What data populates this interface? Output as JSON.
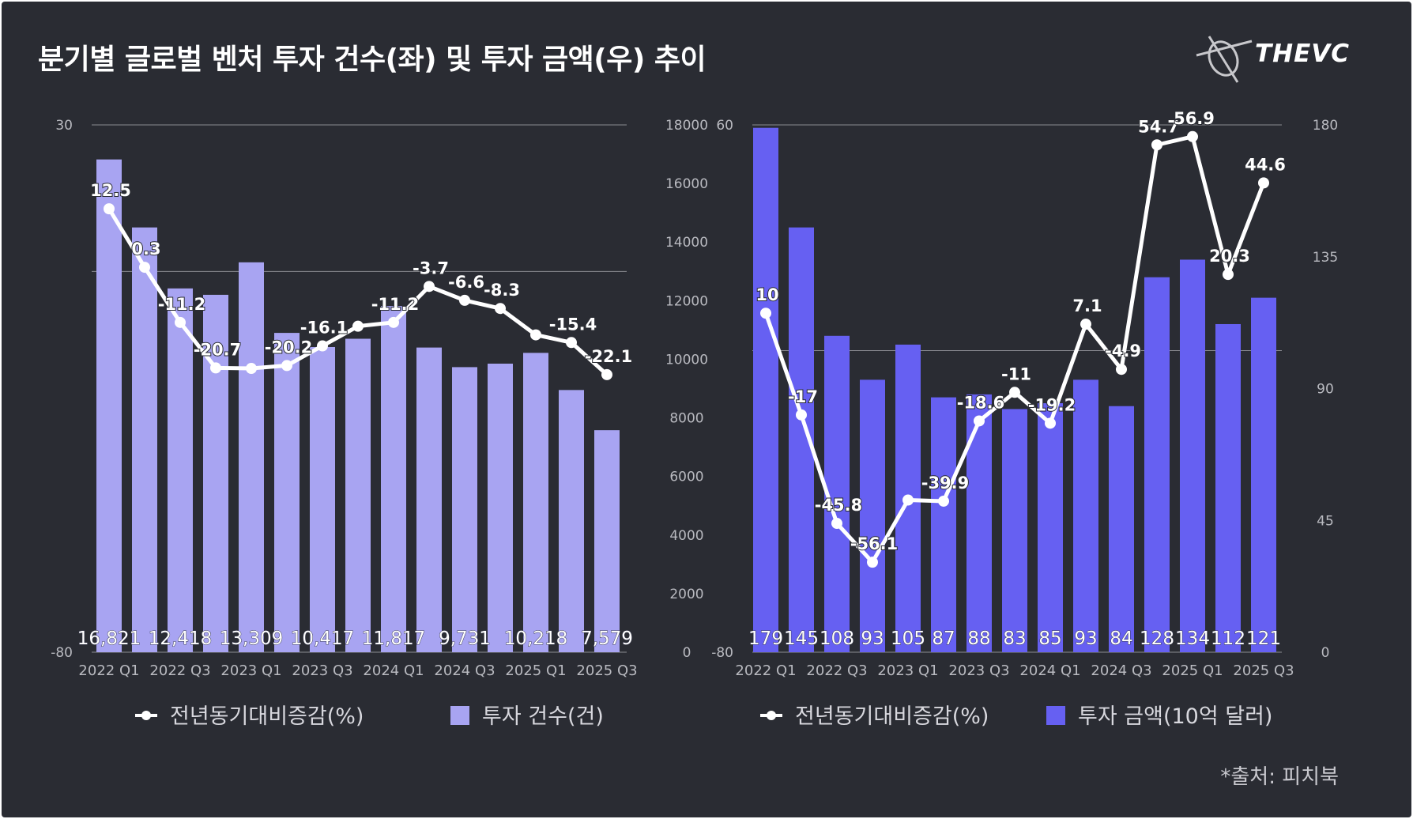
{
  "title": "분기별 글로벌 벤처 투자 건수(좌) 및 투자 금액(우) 추이",
  "brand": "THEVC",
  "source": "*출처: 피치북",
  "colors": {
    "background": "#2a2c33",
    "bar_left": "#a8a4f2",
    "bar_right": "#6660f2",
    "line": "#ffffff",
    "grid": "#8a8b91"
  },
  "chart_data": [
    {
      "type": "bar+line",
      "categories": [
        "2022 Q1",
        "2022 Q2",
        "2022 Q3",
        "2022 Q4",
        "2023 Q1",
        "2023 Q2",
        "2023 Q3",
        "2023 Q4",
        "2024 Q1",
        "2024 Q2",
        "2024 Q3",
        "2024 Q4",
        "2025 Q1",
        "2025 Q2",
        "2025 Q3"
      ],
      "x_tick_labels": [
        "2022 Q1",
        "2022 Q3",
        "2023 Q1",
        "2023 Q3",
        "2024 Q1",
        "2024 Q3",
        "2025 Q1",
        "2025 Q3"
      ],
      "bars": {
        "name": "투자 건수(건)",
        "values": [
          16821,
          14500,
          12418,
          12200,
          13309,
          10900,
          10417,
          10700,
          11817,
          10400,
          9731,
          9850,
          10218,
          8950,
          7579
        ],
        "labels": [
          "16,821",
          "",
          "12,418",
          "",
          "13,309",
          "",
          "10,417",
          "",
          "11,817",
          "",
          "9,731",
          "",
          "10,218",
          "",
          "7,579"
        ],
        "axis": "right",
        "ylim": [
          0,
          18000
        ],
        "ticks": [
          0,
          2000,
          4000,
          6000,
          8000,
          10000,
          12000,
          14000,
          16000,
          18000
        ]
      },
      "line": {
        "name": "전년동기대비증감(%)",
        "values": [
          12.5,
          0.3,
          -11.2,
          -20.7,
          -20.8,
          -20.2,
          -16.1,
          -12.0,
          -11.2,
          -3.7,
          -6.6,
          -8.3,
          -13.8,
          -15.4,
          -22.1
        ],
        "labels": [
          "12.5",
          "0.3",
          "-11.2",
          "-20.7",
          "",
          "-20.2",
          "-16.1",
          "",
          "-11.2",
          "-3.7",
          "-6.6",
          "-8.3",
          "",
          "-15.4",
          "-22.1"
        ],
        "axis": "left",
        "ylim": [
          -80,
          30
        ],
        "ticks": [
          -80,
          30
        ]
      },
      "legend": [
        "전년동기대비증감(%)",
        "투자 건수(건)"
      ]
    },
    {
      "type": "bar+line",
      "categories": [
        "2022 Q1",
        "2022 Q2",
        "2022 Q3",
        "2022 Q4",
        "2023 Q1",
        "2023 Q2",
        "2023 Q3",
        "2023 Q4",
        "2024 Q1",
        "2024 Q2",
        "2024 Q3",
        "2024 Q4",
        "2025 Q1",
        "2025 Q2",
        "2025 Q3"
      ],
      "x_tick_labels": [
        "2022 Q1",
        "2022 Q3",
        "2023 Q1",
        "2023 Q3",
        "2024 Q1",
        "2024 Q3",
        "2025 Q1",
        "2025 Q3"
      ],
      "bars": {
        "name": "투자 금액(10억 달러)",
        "values": [
          179,
          145,
          108,
          93,
          105,
          87,
          88,
          83,
          85,
          93,
          84,
          128,
          134,
          112,
          121
        ],
        "labels": [
          "179",
          "145",
          "108",
          "93",
          "105",
          "87",
          "88",
          "83",
          "85",
          "93",
          "84",
          "128",
          "134",
          "112",
          "121"
        ],
        "axis": "right",
        "ylim": [
          0,
          180
        ],
        "ticks": [
          0,
          45,
          90,
          135,
          180
        ]
      },
      "line": {
        "name": "전년동기대비증감(%)",
        "values": [
          10,
          -17,
          -45.8,
          -56.1,
          -39.6,
          -39.9,
          -18.6,
          -11,
          -19.2,
          7.1,
          -4.9,
          54.7,
          56.9,
          20.3,
          44.6
        ],
        "labels": [
          "10",
          "-17",
          "-45.8",
          "-56.1",
          "",
          "-39.9",
          "-18.6",
          "-11",
          "-19.2",
          "7.1",
          "-4.9",
          "54.7",
          "56.9",
          "20.3",
          "44.6"
        ],
        "axis": "left",
        "ylim": [
          -80,
          60
        ],
        "ticks": [
          -80,
          60
        ]
      },
      "legend": [
        "전년동기대비증감(%)",
        "투자 금액(10억 달러)"
      ]
    }
  ]
}
